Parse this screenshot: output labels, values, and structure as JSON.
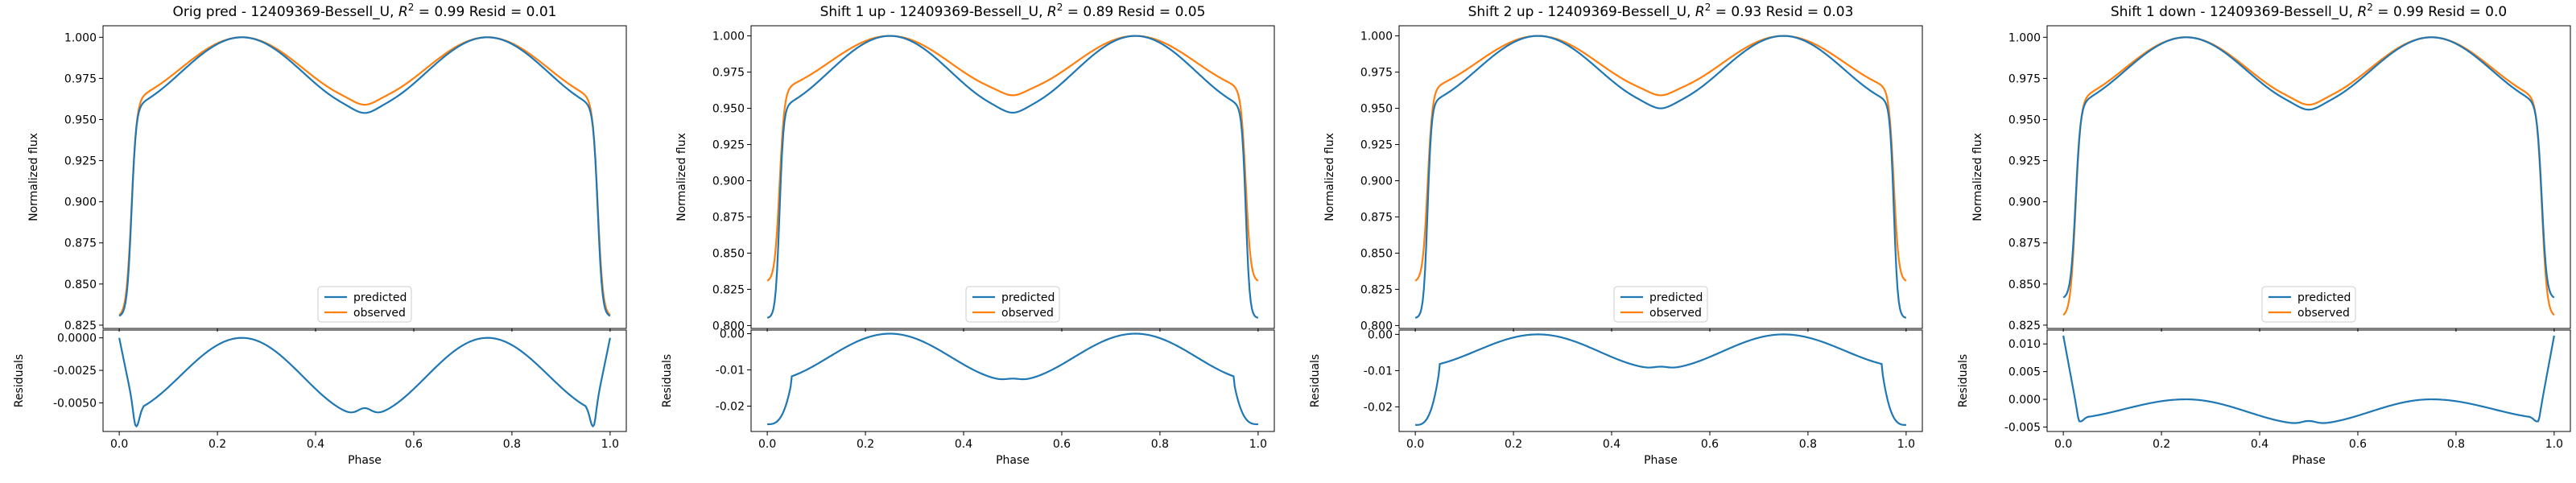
{
  "figure": {
    "x_axis_label": "Phase",
    "top_y_label": "Normalized flux",
    "bottom_y_label": "Residuals",
    "legend": [
      "predicted",
      "observed"
    ],
    "colors": {
      "predicted": "#1f77b4",
      "observed": "#ff7f0e"
    }
  },
  "chart_data": [
    {
      "type": "line",
      "title": "Orig pred - 12409369-Bessell_U, R² = 0.99 Resid = 0.01",
      "title_parts": {
        "prefix": "Orig pred - 12409369-Bessell_U, ",
        "r2": "0.99",
        "suffix": " Resid = 0.01"
      },
      "xlabel": "Phase",
      "ylabel": "Normalized flux",
      "xlim": [
        -0.033,
        1.033
      ],
      "xticks": [
        "0.0",
        "0.2",
        "0.4",
        "0.6",
        "0.8",
        "1.0"
      ],
      "ylim": [
        0.823,
        1.007
      ],
      "yticks": [
        "0.825",
        "0.850",
        "0.875",
        "0.900",
        "0.925",
        "0.950",
        "0.975",
        "1.000"
      ],
      "legend_position": "lower center",
      "series": [
        {
          "name": "predicted",
          "color": "#1f77b4",
          "params": {
            "edge": 0.83,
            "plateau": 0.957,
            "mid": 0.957,
            "width": 0.015
          }
        },
        {
          "name": "observed",
          "color": "#ff7f0e",
          "params": {
            "edge": 0.83,
            "plateau": 0.962,
            "mid": 0.962,
            "width": 0.017
          }
        }
      ],
      "residuals": {
        "ylabel": "Residuals",
        "ylim": [
          -0.0072,
          0.0006
        ],
        "yticks": [
          "0.0000",
          "-0.0025",
          "-0.0050"
        ],
        "params": {
          "edge_val": 0.0,
          "step_val": -0.0058,
          "mid_val": -0.006,
          "mid_wiggle": 0.0006,
          "dip": -0.0068,
          "rise": "sharp"
        }
      }
    },
    {
      "type": "line",
      "title": "Shift 1 up - 12409369-Bessell_U, R² = 0.89 Resid = 0.05",
      "title_parts": {
        "prefix": "Shift 1 up - 12409369-Bessell_U, ",
        "r2": "0.89",
        "suffix": " Resid = 0.05"
      },
      "xlabel": "Phase",
      "ylabel": "Normalized flux",
      "xlim": [
        -0.033,
        1.033
      ],
      "xticks": [
        "0.0",
        "0.2",
        "0.4",
        "0.6",
        "0.8",
        "1.0"
      ],
      "ylim": [
        0.798,
        1.007
      ],
      "yticks": [
        "0.800",
        "0.825",
        "0.850",
        "0.875",
        "0.900",
        "0.925",
        "0.950",
        "0.975",
        "1.000"
      ],
      "legend_position": "lower center",
      "series": [
        {
          "name": "predicted",
          "color": "#1f77b4",
          "params": {
            "edge": 0.805,
            "plateau": 0.95,
            "mid": 0.95,
            "width": 0.013
          }
        },
        {
          "name": "observed",
          "color": "#ff7f0e",
          "params": {
            "edge": 0.83,
            "plateau": 0.963,
            "mid": 0.962,
            "width": 0.016
          }
        }
      ],
      "residuals": {
        "ylabel": "Residuals",
        "ylim": [
          -0.027,
          0.001
        ],
        "yticks": [
          "0.00",
          "-0.01",
          "-0.02"
        ],
        "params": {
          "edge_val": -0.025,
          "step_val": -0.013,
          "mid_val": -0.013,
          "mid_wiggle": 0.0006,
          "dip": -0.027,
          "rise": "flat"
        }
      }
    },
    {
      "type": "line",
      "title": "Shift 2 up - 12409369-Bessell_U, R² = 0.93 Resid = 0.03",
      "title_parts": {
        "prefix": "Shift 2 up - 12409369-Bessell_U, ",
        "r2": "0.93",
        "suffix": " Resid = 0.03"
      },
      "xlabel": "Phase",
      "ylabel": "Normalized flux",
      "xlim": [
        -0.033,
        1.033
      ],
      "xticks": [
        "0.0",
        "0.2",
        "0.4",
        "0.6",
        "0.8",
        "1.0"
      ],
      "ylim": [
        0.798,
        1.007
      ],
      "yticks": [
        "0.800",
        "0.825",
        "0.850",
        "0.875",
        "0.900",
        "0.925",
        "0.950",
        "0.975",
        "1.000"
      ],
      "legend_position": "lower center",
      "series": [
        {
          "name": "predicted",
          "color": "#1f77b4",
          "params": {
            "edge": 0.805,
            "plateau": 0.953,
            "mid": 0.953,
            "width": 0.013
          }
        },
        {
          "name": "observed",
          "color": "#ff7f0e",
          "params": {
            "edge": 0.83,
            "plateau": 0.963,
            "mid": 0.962,
            "width": 0.016
          }
        }
      ],
      "residuals": {
        "ylabel": "Residuals",
        "ylim": [
          -0.0268,
          0.0012
        ],
        "yticks": [
          "0.00",
          "-0.01",
          "-0.02"
        ],
        "params": {
          "edge_val": -0.025,
          "step_val": -0.009,
          "mid_val": -0.0095,
          "mid_wiggle": 0.0006,
          "dip": -0.026,
          "rise": "flat"
        }
      }
    },
    {
      "type": "line",
      "title": "Shift 1 down - 12409369-Bessell_U, R² = 0.99 Resid = 0.0",
      "title_parts": {
        "prefix": "Shift 1 down - 12409369-Bessell_U, ",
        "r2": "0.99",
        "suffix": " Resid = 0.0"
      },
      "xlabel": "Phase",
      "ylabel": "Normalized flux",
      "xlim": [
        -0.033,
        1.033
      ],
      "xticks": [
        "0.0",
        "0.2",
        "0.4",
        "0.6",
        "0.8",
        "1.0"
      ],
      "ylim": [
        0.823,
        1.007
      ],
      "yticks": [
        "0.825",
        "0.850",
        "0.875",
        "0.900",
        "0.925",
        "0.950",
        "0.975",
        "1.000"
      ],
      "legend_position": "lower center",
      "series": [
        {
          "name": "predicted",
          "color": "#1f77b4",
          "params": {
            "edge": 0.841,
            "plateau": 0.959,
            "mid": 0.959,
            "width": 0.016
          }
        },
        {
          "name": "observed",
          "color": "#ff7f0e",
          "params": {
            "edge": 0.83,
            "plateau": 0.962,
            "mid": 0.962,
            "width": 0.017
          }
        }
      ],
      "residuals": {
        "ylabel": "Residuals",
        "ylim": [
          -0.0058,
          0.0125
        ],
        "yticks": [
          "0.010",
          "0.005",
          "0.000",
          "-0.005"
        ],
        "params": {
          "edge_val": 0.0115,
          "step_val": -0.0035,
          "mid_val": -0.0045,
          "mid_wiggle": 0.0006,
          "dip": -0.004,
          "rise": "sharp"
        }
      }
    }
  ]
}
